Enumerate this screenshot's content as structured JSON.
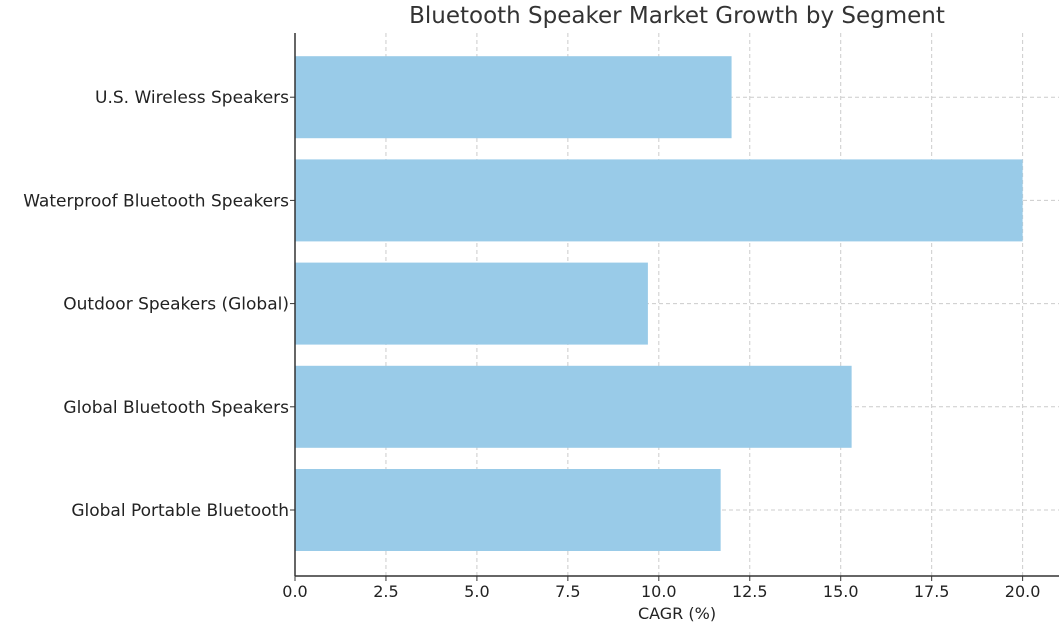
{
  "chart_data": {
    "type": "bar",
    "orientation": "horizontal",
    "title": "Bluetooth Speaker Market Growth by Segment",
    "xlabel": "CAGR (%)",
    "ylabel": "",
    "categories": [
      "Global Portable Bluetooth",
      "Global Bluetooth Speakers",
      "Outdoor Speakers (Global)",
      "Waterproof Bluetooth Speakers",
      "U.S. Wireless Speakers"
    ],
    "values": [
      11.7,
      15.3,
      9.7,
      20.0,
      12.0
    ],
    "xlim": [
      0,
      21
    ],
    "xticks": [
      "0.0",
      "2.5",
      "5.0",
      "7.5",
      "10.0",
      "12.5",
      "15.0",
      "17.5",
      "20.0"
    ],
    "grid": true,
    "bar_color": "#99cbe8",
    "grid_color": "#cccccc",
    "axis_color": "#333333"
  }
}
